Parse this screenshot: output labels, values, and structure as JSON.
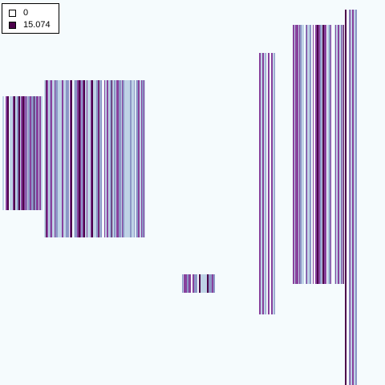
{
  "chart_data": {
    "type": "heatmap",
    "title": "",
    "xlabel": "",
    "ylabel": "",
    "value_range": [
      0,
      15.074
    ],
    "colorscale": [
      "#f5fbfd",
      "#bfd3e6",
      "#8c96c6",
      "#88419d",
      "#4d004b"
    ],
    "legend": {
      "placement": "top-left",
      "entries": [
        {
          "label": "0",
          "color": "#ffffff"
        },
        {
          "label": "15.074",
          "color": "#4d004b"
        }
      ]
    }
  }
}
